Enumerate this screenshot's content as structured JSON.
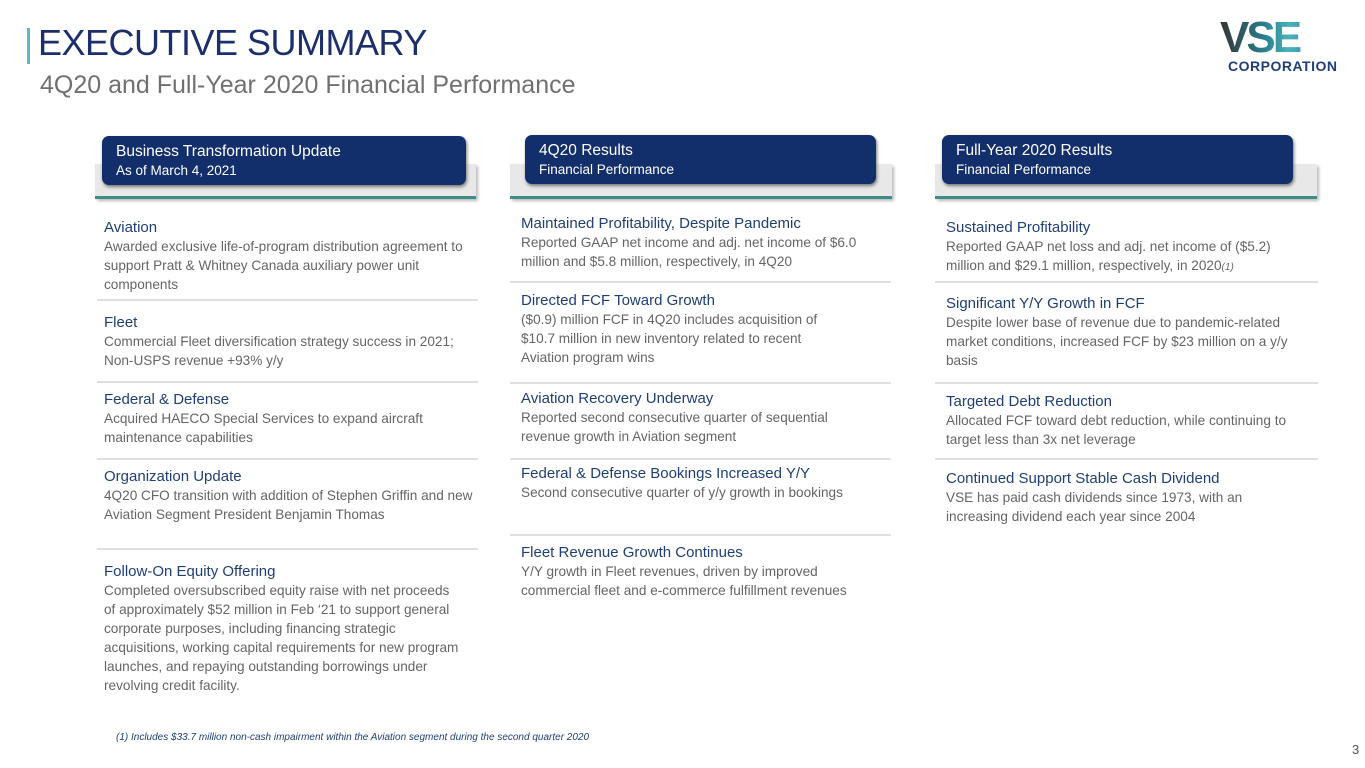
{
  "header": {
    "title": "EXECUTIVE SUMMARY",
    "subtitle": "4Q20 and Full-Year 2020 Financial Performance",
    "logo_text": "VSE CORPORATION"
  },
  "columns": [
    {
      "heading": "Business Transformation Update",
      "subheading": "As of March 4, 2021",
      "items": [
        {
          "title": "Aviation",
          "text": "Awarded exclusive life-of-program distribution agreement to support Pratt & Whitney Canada auxiliary power unit components"
        },
        {
          "title": "Fleet",
          "text": "Commercial Fleet diversification strategy success in 2021; Non-USPS revenue +93% y/y"
        },
        {
          "title": "Federal & Defense",
          "text": "Acquired HAECO Special Services to expand aircraft maintenance capabilities"
        },
        {
          "title": "Organization Update",
          "text": "4Q20 CFO transition with addition of Stephen Griffin and new Aviation Segment President Benjamin Thomas"
        },
        {
          "title": "Follow-On Equity Offering",
          "text": "Completed oversubscribed equity raise with net proceeds of approximately $52 million in Feb ‘21 to support general corporate purposes, including financing strategic acquisitions, working capital requirements for new program launches, and repaying outstanding borrowings under revolving credit facility."
        }
      ]
    },
    {
      "heading": "4Q20 Results",
      "subheading": "Financial Performance",
      "items": [
        {
          "title": "Maintained Profitability, Despite Pandemic",
          "text": "Reported GAAP net income and adj. net income of $6.0 million and $5.8 million, respectively, in 4Q20"
        },
        {
          "title": "Directed FCF Toward Growth",
          "text": "($0.9) million FCF in 4Q20 includes acquisition of $10.7 million in new inventory related to recent Aviation program wins"
        },
        {
          "title": "Aviation Recovery Underway",
          "text": "Reported second consecutive quarter of sequential revenue growth in Aviation segment"
        },
        {
          "title": "Federal & Defense Bookings Increased Y/Y",
          "text": "Second consecutive quarter of y/y growth in bookings"
        },
        {
          "title": "Fleet Revenue Growth Continues",
          "text": "Y/Y growth in Fleet revenues, driven by improved commercial fleet and e-commerce fulfillment revenues"
        }
      ]
    },
    {
      "heading": "Full-Year 2020 Results",
      "subheading": "Financial Performance",
      "items": [
        {
          "title": "Sustained Profitability",
          "text": "Reported GAAP net loss and adj. net income of ($5.2) million and $29.1 million, respectively, in 2020",
          "note": "(1)"
        },
        {
          "title": "Significant Y/Y Growth in FCF",
          "text": "Despite lower base of revenue due to pandemic-related market conditions, increased FCF by $23 million on a y/y basis"
        },
        {
          "title": "Targeted Debt Reduction",
          "text": "Allocated FCF toward debt reduction, while continuing to target less than 3x net leverage"
        },
        {
          "title": "Continued Support Stable Cash Dividend",
          "text": "VSE has paid cash dividends since 1973, with an increasing dividend each year since 2004"
        }
      ]
    }
  ],
  "footnote": "(1)    Includes $33.7 million non-cash impairment within the Aviation segment during the second quarter 2020",
  "page_number": "3"
}
